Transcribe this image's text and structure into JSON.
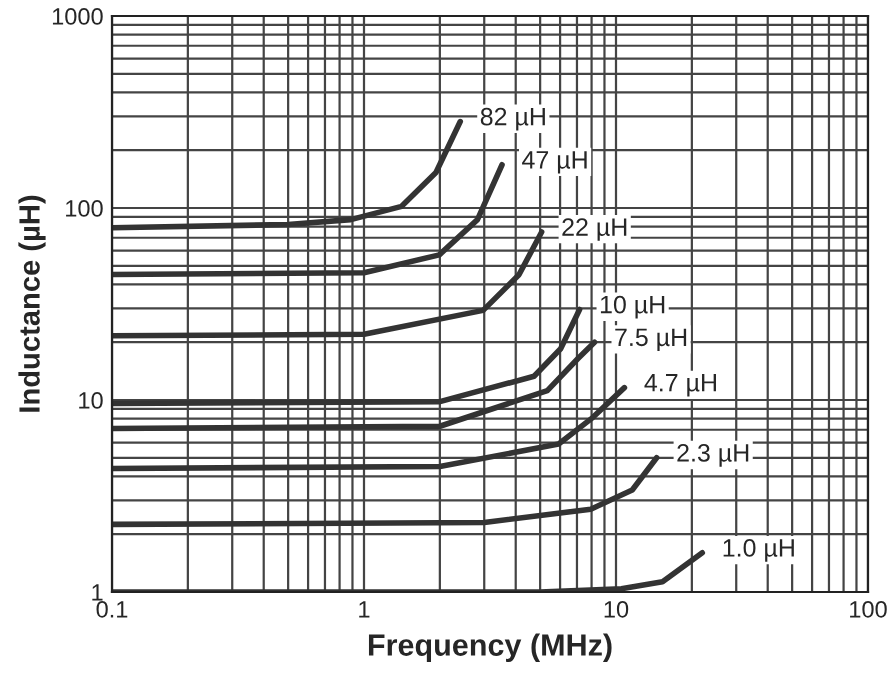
{
  "chart_data": {
    "type": "line",
    "xlabel": "Frequency (MHz)",
    "ylabel": "Inductance (µH)",
    "log": "xy",
    "grid": true,
    "legend": false,
    "marker": "none",
    "line_style": "solid",
    "xlim": [
      0.1,
      100
    ],
    "ylim": [
      1,
      1000
    ],
    "xticks": [
      0.1,
      1,
      10,
      100
    ],
    "yticks": [
      1,
      10,
      100,
      1000
    ],
    "series": [
      {
        "name": "82 µH",
        "color": "#333333",
        "x": [
          0.1,
          0.5,
          0.886,
          1.41,
          1.93,
          2.41
        ],
        "values": [
          79,
          82,
          87,
          102,
          153,
          282
        ]
      },
      {
        "name": "47 µH",
        "color": "#333333",
        "x": [
          0.1,
          1,
          1.99,
          2.82,
          3.53
        ],
        "values": [
          45,
          46,
          57,
          87,
          168
        ]
      },
      {
        "name": "22 µH",
        "color": "#333333",
        "x": [
          0.1,
          1,
          2.97,
          4.12,
          5.07
        ],
        "values": [
          21.6,
          22,
          29.3,
          44.9,
          75
        ]
      },
      {
        "name": "10 µH",
        "color": "#333333",
        "x": [
          0.1,
          2,
          4.73,
          6.03,
          7.17
        ],
        "values": [
          9.6,
          9.8,
          13.3,
          18.5,
          29.6
        ]
      },
      {
        "name": "7.5 µH",
        "color": "#333333",
        "x": [
          0.1,
          2,
          5.34,
          7.05,
          8.22
        ],
        "values": [
          7.1,
          7.3,
          11.2,
          16.4,
          20
        ]
      },
      {
        "name": "4.7 µH",
        "color": "#333333",
        "x": [
          0.1,
          2,
          5.92,
          8.08,
          10.8
        ],
        "values": [
          4.4,
          4.5,
          5.9,
          8.1,
          11.6
        ]
      },
      {
        "name": "2.3 µH",
        "color": "#333333",
        "x": [
          0.1,
          3,
          7.94,
          11.6,
          14.5
        ],
        "values": [
          2.25,
          2.3,
          2.7,
          3.4,
          5
        ]
      },
      {
        "name": "1.0 µH",
        "color": "#333333",
        "x": [
          0.1,
          5,
          10.5,
          15.3,
          22
        ],
        "values": [
          1,
          1,
          1.04,
          1.13,
          1.6
        ]
      }
    ]
  }
}
